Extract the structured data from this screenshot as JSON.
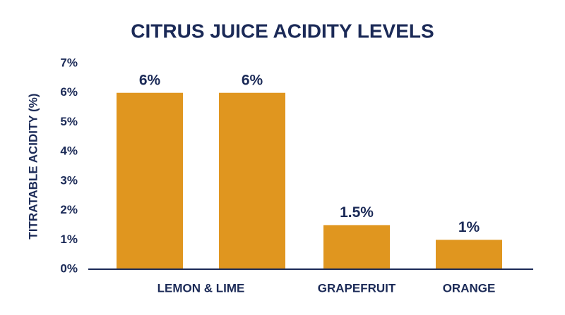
{
  "chart_data": {
    "type": "bar",
    "title": "CITRUS JUICE ACIDITY LEVELS",
    "y_label": "TITRATABLE ACIDITY (%)",
    "categories": [
      "LEMON & LIME",
      null,
      "GRAPEFRUIT",
      "ORANGE"
    ],
    "values": [
      6,
      6,
      1.5,
      1
    ],
    "value_labels": [
      "6%",
      "6%",
      "1.5%",
      "1%"
    ],
    "color": "#e0961f",
    "ylim": [
      0,
      7
    ],
    "yticks": [
      {
        "value": 0,
        "label": "0%"
      },
      {
        "value": 1,
        "label": "1%"
      },
      {
        "value": 2,
        "label": "2%"
      },
      {
        "value": 3,
        "label": "3%"
      },
      {
        "value": 4,
        "label": "4%"
      },
      {
        "value": 5,
        "label": "5%"
      },
      {
        "value": 6,
        "label": "6%"
      },
      {
        "value": 7,
        "label": "7%"
      }
    ],
    "grid": false
  }
}
